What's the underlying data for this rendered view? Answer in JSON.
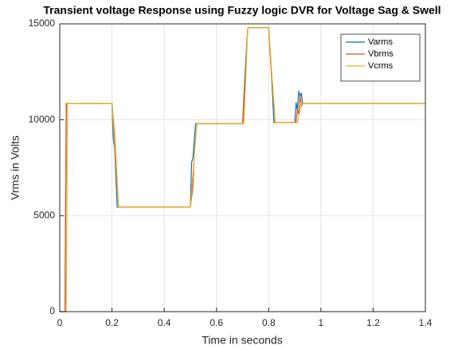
{
  "chart_data": {
    "type": "line",
    "title": "Transient voltage Response using Fuzzy logic DVR for Voltage Sag & Swell",
    "xlabel": "Time in seconds",
    "ylabel": "Vrms in Volts",
    "xlim": [
      0,
      1.4
    ],
    "xticks": [
      0,
      0.2,
      0.4,
      0.6,
      0.8,
      1,
      1.2,
      1.4
    ],
    "ylim": [
      0,
      15000
    ],
    "yticks": [
      0,
      5000,
      10000,
      15000
    ],
    "grid": true,
    "legend": "top-right",
    "series": [
      {
        "name": "Varms",
        "color": "#0072BD",
        "x": [
          0,
          0.02,
          0.025,
          0.2,
          0.205,
          0.21,
          0.22,
          0.5,
          0.505,
          0.51,
          0.52,
          0.7,
          0.71,
          0.72,
          0.8,
          0.81,
          0.82,
          0.9,
          0.905,
          0.91,
          0.915,
          0.92,
          0.925,
          0.93,
          1.4
        ],
        "values": [
          0,
          0,
          10850,
          10850,
          9000,
          8500,
          5450,
          5450,
          7800,
          8000,
          9800,
          9800,
          12500,
          14800,
          14800,
          12600,
          9850,
          9850,
          10900,
          10500,
          11500,
          11200,
          11400,
          10850,
          10850
        ]
      },
      {
        "name": "Vbrms",
        "color": "#D95319",
        "x": [
          0,
          0.02,
          0.025,
          0.2,
          0.21,
          0.215,
          0.225,
          0.5,
          0.51,
          0.515,
          0.525,
          0.7,
          0.71,
          0.72,
          0.8,
          0.805,
          0.825,
          0.905,
          0.91,
          0.915,
          0.92,
          0.925,
          0.93,
          1.4
        ],
        "values": [
          0,
          0,
          10850,
          10850,
          9200,
          8000,
          5450,
          5450,
          6500,
          8200,
          9800,
          9800,
          12000,
          14800,
          14800,
          13500,
          9850,
          9850,
          10500,
          10300,
          11300,
          10700,
          10850,
          10850
        ]
      },
      {
        "name": "Vcrms",
        "color": "#EDB120",
        "x": [
          0,
          0.025,
          0.03,
          0.2,
          0.225,
          0.5,
          0.525,
          0.705,
          0.72,
          0.8,
          0.825,
          0.91,
          0.925,
          1.4
        ],
        "values": [
          0,
          0,
          10850,
          10850,
          5450,
          5450,
          9800,
          9800,
          14800,
          14800,
          9850,
          9850,
          10850,
          10850
        ]
      }
    ]
  }
}
